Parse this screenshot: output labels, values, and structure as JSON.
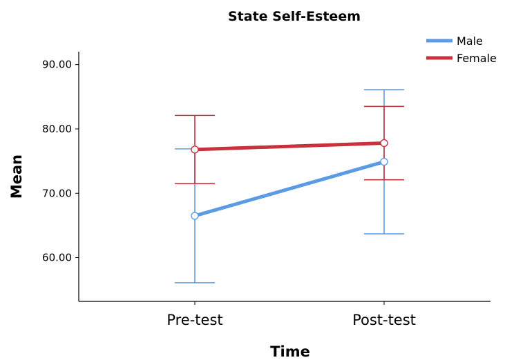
{
  "chart_data": {
    "type": "line",
    "title": "State Self-Esteem",
    "xlabel": "Time",
    "ylabel": "Mean",
    "categories": [
      "Pre-test",
      "Post-test"
    ],
    "ylim": [
      53.2,
      92.0
    ],
    "yticks": [
      60,
      70,
      80,
      90
    ],
    "ytick_labels": [
      "60.00",
      "70.00",
      "80.00",
      "90.00"
    ],
    "grid": false,
    "legend_position": "top-right",
    "error_bars": true,
    "series": [
      {
        "name": "Male",
        "color": "#5b9be6",
        "values": [
          66.5,
          74.9
        ],
        "error_low": [
          56.1,
          63.7
        ],
        "error_high": [
          76.9,
          86.1
        ]
      },
      {
        "name": "Female",
        "color": "#c8323c",
        "values": [
          76.8,
          77.8
        ],
        "error_low": [
          71.5,
          72.1
        ],
        "error_high": [
          82.1,
          83.5
        ]
      }
    ]
  }
}
